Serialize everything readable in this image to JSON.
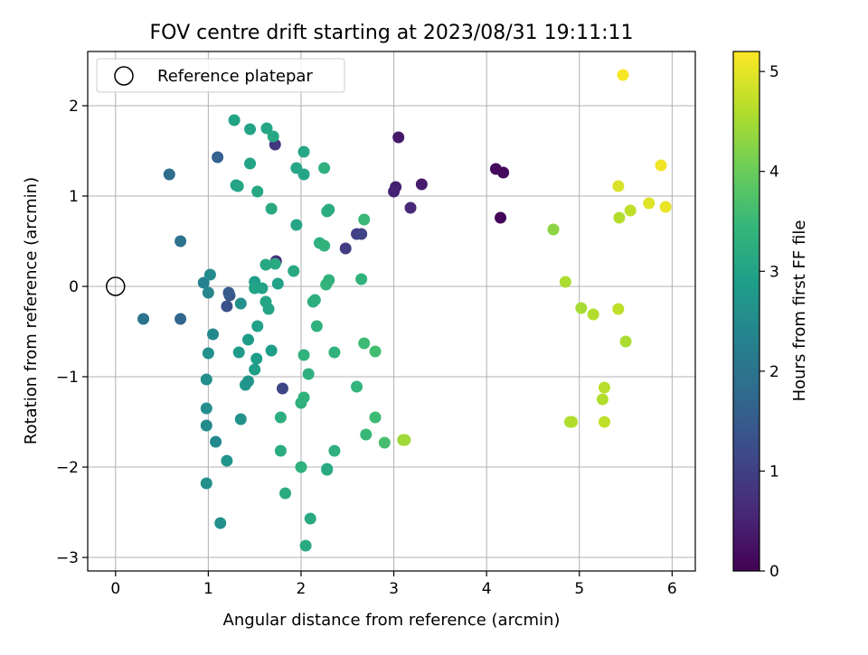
{
  "chart_data": {
    "type": "scatter",
    "title": "FOV centre drift starting at 2023/08/31 19:11:11",
    "xlabel": "Angular distance from reference (arcmin)",
    "ylabel": "Rotation from reference (arcmin)",
    "xlim": [
      -0.3,
      6.25
    ],
    "ylim": [
      -3.15,
      2.6
    ],
    "xticks": [
      0,
      1,
      2,
      3,
      4,
      5,
      6
    ],
    "yticks": [
      -3,
      -2,
      -1,
      0,
      1,
      2
    ],
    "grid": true,
    "legend": {
      "placement": "upper-left",
      "entries": [
        "Reference platepar"
      ]
    },
    "reference_point": {
      "x": 0,
      "y": 0,
      "marker": "open-circle"
    },
    "colorbar": {
      "label": "Hours from first FF file",
      "range": [
        0,
        5.2
      ],
      "ticks": [
        0,
        1,
        2,
        3,
        4,
        5
      ],
      "colormap": "viridis",
      "stops": [
        "#440154",
        "#482878",
        "#3e4989",
        "#31688e",
        "#26828e",
        "#1f9e89",
        "#35b779",
        "#6ece58",
        "#b5de2b",
        "#fde725"
      ]
    },
    "points": [
      {
        "x": 4.15,
        "y": 0.76,
        "c": 0.05
      },
      {
        "x": 4.18,
        "y": 1.26,
        "c": 0.1
      },
      {
        "x": 4.1,
        "y": 1.3,
        "c": 0.15
      },
      {
        "x": 3.05,
        "y": 1.65,
        "c": 0.35
      },
      {
        "x": 3.3,
        "y": 1.13,
        "c": 0.4
      },
      {
        "x": 3.02,
        "y": 1.1,
        "c": 0.45
      },
      {
        "x": 3.0,
        "y": 1.05,
        "c": 0.5
      },
      {
        "x": 3.18,
        "y": 0.87,
        "c": 0.6
      },
      {
        "x": 1.72,
        "y": 1.57,
        "c": 0.8
      },
      {
        "x": 1.73,
        "y": 0.28,
        "c": 0.7
      },
      {
        "x": 2.48,
        "y": 0.42,
        "c": 0.95
      },
      {
        "x": 2.6,
        "y": 0.58,
        "c": 1.0
      },
      {
        "x": 2.65,
        "y": 0.58,
        "c": 1.05
      },
      {
        "x": 1.8,
        "y": -1.13,
        "c": 1.1
      },
      {
        "x": 1.2,
        "y": -0.22,
        "c": 1.3
      },
      {
        "x": 1.23,
        "y": -0.1,
        "c": 1.4
      },
      {
        "x": 1.22,
        "y": -0.07,
        "c": 1.5
      },
      {
        "x": 1.1,
        "y": 1.43,
        "c": 1.6
      },
      {
        "x": 0.7,
        "y": -0.36,
        "c": 1.7
      },
      {
        "x": 0.58,
        "y": 1.24,
        "c": 1.85
      },
      {
        "x": 0.7,
        "y": 0.5,
        "c": 1.95
      },
      {
        "x": 0.3,
        "y": -0.36,
        "c": 2.0
      },
      {
        "x": 0.95,
        "y": 0.04,
        "c": 2.3
      },
      {
        "x": 1.0,
        "y": -0.07,
        "c": 2.4
      },
      {
        "x": 1.02,
        "y": 0.13,
        "c": 2.5
      },
      {
        "x": 1.05,
        "y": -0.53,
        "c": 2.45
      },
      {
        "x": 0.98,
        "y": -1.03,
        "c": 2.55
      },
      {
        "x": 1.0,
        "y": -0.74,
        "c": 2.6
      },
      {
        "x": 0.98,
        "y": -1.35,
        "c": 2.55
      },
      {
        "x": 0.98,
        "y": -1.54,
        "c": 2.5
      },
      {
        "x": 1.08,
        "y": -1.72,
        "c": 2.45
      },
      {
        "x": 0.98,
        "y": -2.18,
        "c": 2.6
      },
      {
        "x": 1.13,
        "y": -2.62,
        "c": 2.6
      },
      {
        "x": 1.2,
        "y": -1.93,
        "c": 2.7
      },
      {
        "x": 1.35,
        "y": -1.47,
        "c": 2.65
      },
      {
        "x": 1.35,
        "y": -0.19,
        "c": 2.6
      },
      {
        "x": 1.33,
        "y": -0.73,
        "c": 2.8
      },
      {
        "x": 1.4,
        "y": -1.09,
        "c": 2.75
      },
      {
        "x": 1.43,
        "y": -1.05,
        "c": 2.7
      },
      {
        "x": 1.43,
        "y": -0.59,
        "c": 2.85
      },
      {
        "x": 1.5,
        "y": -0.92,
        "c": 2.9
      },
      {
        "x": 1.52,
        "y": -0.8,
        "c": 2.9
      },
      {
        "x": 1.53,
        "y": -0.44,
        "c": 2.95
      },
      {
        "x": 1.5,
        "y": 0.05,
        "c": 2.9
      },
      {
        "x": 1.5,
        "y": -0.02,
        "c": 3.0
      },
      {
        "x": 1.58,
        "y": -0.02,
        "c": 3.0
      },
      {
        "x": 1.62,
        "y": -0.17,
        "c": 3.05
      },
      {
        "x": 1.65,
        "y": -0.25,
        "c": 3.05
      },
      {
        "x": 1.68,
        "y": -0.71,
        "c": 2.9
      },
      {
        "x": 1.62,
        "y": 0.24,
        "c": 3.1
      },
      {
        "x": 1.75,
        "y": 0.03,
        "c": 2.95
      },
      {
        "x": 1.72,
        "y": 0.25,
        "c": 3.15
      },
      {
        "x": 1.3,
        "y": 1.12,
        "c": 2.95
      },
      {
        "x": 1.28,
        "y": 1.84,
        "c": 3.0
      },
      {
        "x": 1.45,
        "y": 1.74,
        "c": 3.0
      },
      {
        "x": 1.63,
        "y": 1.75,
        "c": 3.05
      },
      {
        "x": 1.7,
        "y": 1.66,
        "c": 3.1
      },
      {
        "x": 1.45,
        "y": 1.36,
        "c": 3.0
      },
      {
        "x": 1.32,
        "y": 1.11,
        "c": 3.05
      },
      {
        "x": 1.53,
        "y": 1.05,
        "c": 3.1
      },
      {
        "x": 1.68,
        "y": 0.86,
        "c": 3.15
      },
      {
        "x": 1.95,
        "y": 1.31,
        "c": 3.1
      },
      {
        "x": 2.03,
        "y": 1.49,
        "c": 3.1
      },
      {
        "x": 2.03,
        "y": 1.24,
        "c": 3.05
      },
      {
        "x": 1.95,
        "y": 0.68,
        "c": 3.05
      },
      {
        "x": 1.92,
        "y": 0.17,
        "c": 3.15
      },
      {
        "x": 1.78,
        "y": -1.45,
        "c": 3.25
      },
      {
        "x": 1.78,
        "y": -1.82,
        "c": 3.2
      },
      {
        "x": 1.83,
        "y": -2.29,
        "c": 3.2
      },
      {
        "x": 2.0,
        "y": -1.29,
        "c": 3.3
      },
      {
        "x": 2.03,
        "y": -1.23,
        "c": 3.35
      },
      {
        "x": 2.03,
        "y": -0.76,
        "c": 3.35
      },
      {
        "x": 2.08,
        "y": -0.97,
        "c": 3.3
      },
      {
        "x": 2.0,
        "y": -2.0,
        "c": 3.3
      },
      {
        "x": 2.05,
        "y": -2.87,
        "c": 3.15
      },
      {
        "x": 2.1,
        "y": -2.57,
        "c": 3.15
      },
      {
        "x": 2.13,
        "y": -0.17,
        "c": 3.25
      },
      {
        "x": 2.15,
        "y": -0.15,
        "c": 3.25
      },
      {
        "x": 2.17,
        "y": -0.44,
        "c": 3.35
      },
      {
        "x": 2.2,
        "y": 0.48,
        "c": 3.3
      },
      {
        "x": 2.25,
        "y": 0.45,
        "c": 3.35
      },
      {
        "x": 2.27,
        "y": 0.02,
        "c": 3.4
      },
      {
        "x": 2.3,
        "y": 0.07,
        "c": 3.35
      },
      {
        "x": 2.28,
        "y": 0.83,
        "c": 3.25
      },
      {
        "x": 2.3,
        "y": 0.85,
        "c": 3.2
      },
      {
        "x": 2.25,
        "y": 1.31,
        "c": 3.3
      },
      {
        "x": 2.28,
        "y": -2.03,
        "c": 3.2
      },
      {
        "x": 2.28,
        "y": -2.02,
        "c": 3.15
      },
      {
        "x": 2.36,
        "y": -1.82,
        "c": 3.3
      },
      {
        "x": 2.36,
        "y": -0.73,
        "c": 3.35
      },
      {
        "x": 2.6,
        "y": -1.11,
        "c": 3.4
      },
      {
        "x": 2.65,
        "y": 0.08,
        "c": 3.35
      },
      {
        "x": 2.68,
        "y": 0.74,
        "c": 3.5
      },
      {
        "x": 2.68,
        "y": -0.63,
        "c": 3.55
      },
      {
        "x": 2.7,
        "y": -1.64,
        "c": 3.5
      },
      {
        "x": 2.8,
        "y": -0.72,
        "c": 3.6
      },
      {
        "x": 2.8,
        "y": -1.45,
        "c": 3.55
      },
      {
        "x": 2.9,
        "y": -1.73,
        "c": 3.65
      },
      {
        "x": 3.1,
        "y": -1.7,
        "c": 4.4
      },
      {
        "x": 3.12,
        "y": -1.7,
        "c": 4.45
      },
      {
        "x": 4.72,
        "y": 0.63,
        "c": 4.3
      },
      {
        "x": 4.85,
        "y": 0.05,
        "c": 4.55
      },
      {
        "x": 5.02,
        "y": -0.24,
        "c": 4.5
      },
      {
        "x": 5.15,
        "y": -0.31,
        "c": 4.6
      },
      {
        "x": 4.9,
        "y": -1.5,
        "c": 4.55
      },
      {
        "x": 4.92,
        "y": -1.5,
        "c": 4.6
      },
      {
        "x": 5.25,
        "y": -1.25,
        "c": 4.6
      },
      {
        "x": 5.27,
        "y": -1.12,
        "c": 4.65
      },
      {
        "x": 5.27,
        "y": -1.5,
        "c": 4.7
      },
      {
        "x": 5.42,
        "y": -0.25,
        "c": 4.7
      },
      {
        "x": 5.5,
        "y": -0.61,
        "c": 4.55
      },
      {
        "x": 5.43,
        "y": 0.76,
        "c": 4.6
      },
      {
        "x": 5.55,
        "y": 0.84,
        "c": 4.7
      },
      {
        "x": 5.42,
        "y": 1.11,
        "c": 4.9
      },
      {
        "x": 5.75,
        "y": 0.92,
        "c": 4.95
      },
      {
        "x": 5.93,
        "y": 0.88,
        "c": 5.05
      },
      {
        "x": 5.88,
        "y": 1.34,
        "c": 5.1
      },
      {
        "x": 5.47,
        "y": 2.34,
        "c": 5.15
      }
    ]
  }
}
